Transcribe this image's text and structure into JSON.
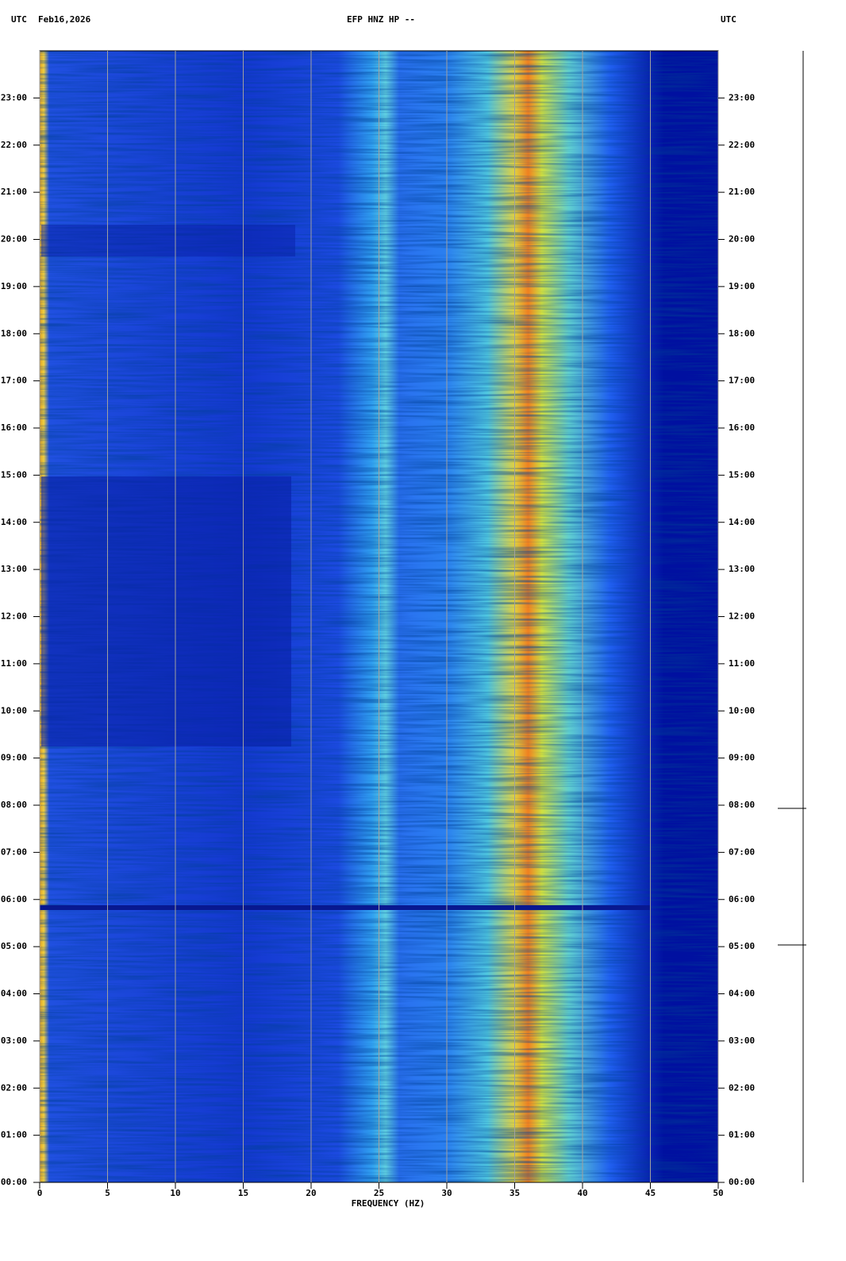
{
  "chart_data": {
    "type": "spectrogram",
    "title": "EFP HNZ HP --",
    "timezone_left": "UTC",
    "date": "Feb16,2026",
    "timezone_right": "UTC",
    "xlabel": "FREQUENCY (HZ)",
    "xlim": [
      0,
      50
    ],
    "xticks": [
      0,
      5,
      10,
      15,
      20,
      25,
      30,
      35,
      40,
      45,
      50
    ],
    "ylim": [
      0,
      24
    ],
    "yticks": [
      {
        "value": 0,
        "label": "00:00"
      },
      {
        "value": 1,
        "label": "01:00"
      },
      {
        "value": 2,
        "label": "02:00"
      },
      {
        "value": 3,
        "label": "03:00"
      },
      {
        "value": 4,
        "label": "04:00"
      },
      {
        "value": 5,
        "label": "05:00"
      },
      {
        "value": 6,
        "label": "06:00"
      },
      {
        "value": 7,
        "label": "07:00"
      },
      {
        "value": 8,
        "label": "08:00"
      },
      {
        "value": 9,
        "label": "09:00"
      },
      {
        "value": 10,
        "label": "10:00"
      },
      {
        "value": 11,
        "label": "11:00"
      },
      {
        "value": 12,
        "label": "12:00"
      },
      {
        "value": 13,
        "label": "13:00"
      },
      {
        "value": 14,
        "label": "14:00"
      },
      {
        "value": 15,
        "label": "15:00"
      },
      {
        "value": 16,
        "label": "16:00"
      },
      {
        "value": 17,
        "label": "17:00"
      },
      {
        "value": 18,
        "label": "18:00"
      },
      {
        "value": 19,
        "label": "19:00"
      },
      {
        "value": 20,
        "label": "20:00"
      },
      {
        "value": 21,
        "label": "21:00"
      },
      {
        "value": 22,
        "label": "22:00"
      },
      {
        "value": 23,
        "label": "23:00"
      }
    ],
    "grid": "x",
    "grid_color": "#a0a0a0"
  }
}
